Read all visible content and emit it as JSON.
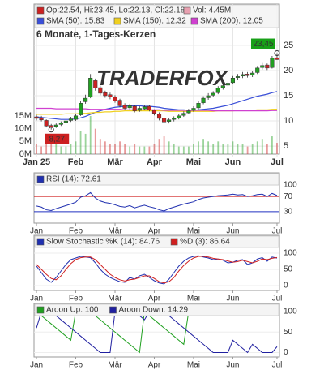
{
  "chart_data": [
    {
      "type": "candlestick",
      "title": "6 Monate, 1-Tages-Kerzen",
      "ohlc_label": "Op:22.54, Hi:23.45, Lo:22.13, Cl:22.18",
      "volume_label": "Vol: 4.45M",
      "watermark": "TRADERFOX",
      "up_color": "#22a022",
      "down_color": "#cc2222",
      "volume_color": "#e8a0b0",
      "x_ticks": [
        {
          "value": 0,
          "label": "Jan 25"
        },
        {
          "value": 8,
          "label": "Feb"
        },
        {
          "value": 16,
          "label": "Mär"
        },
        {
          "value": 24,
          "label": "Apr"
        },
        {
          "value": 32,
          "label": "Mai"
        },
        {
          "value": 40,
          "label": "Jun"
        },
        {
          "value": 49,
          "label": "Jul"
        }
      ],
      "open": [
        10.8,
        10.6,
        10.1,
        9.1,
        8.9,
        9.3,
        9.7,
        10.1,
        10.3,
        11.2,
        13.8,
        14.8,
        18.0,
        16.6,
        15.6,
        15.2,
        14.7,
        14.1,
        13.1,
        12.6,
        12.9,
        12.1,
        12.4,
        12.9,
        12.1,
        11.4,
        10.6,
        9.9,
        10.3,
        10.6,
        11.1,
        11.6,
        12.1,
        12.6,
        13.6,
        14.6,
        15.1,
        15.6,
        16.6,
        17.1,
        17.6,
        18.6,
        18.9,
        19.3,
        19.1,
        19.6,
        20.6,
        21.1,
        20.6,
        22.54
      ],
      "high": [
        11.2,
        11.0,
        10.3,
        9.4,
        9.5,
        9.9,
        10.3,
        10.8,
        11.4,
        14.0,
        15.2,
        19.3,
        18.4,
        17.0,
        16.0,
        15.6,
        15.1,
        14.4,
        13.5,
        13.4,
        13.2,
        12.9,
        13.2,
        13.1,
        12.3,
        11.7,
        10.9,
        10.6,
        10.9,
        11.4,
        11.9,
        12.4,
        12.9,
        13.9,
        14.9,
        15.5,
        15.9,
        16.9,
        17.5,
        17.9,
        18.9,
        19.3,
        19.7,
        19.7,
        19.9,
        20.9,
        21.5,
        21.4,
        22.9,
        23.45
      ],
      "low": [
        10.1,
        9.9,
        8.7,
        8.27,
        8.6,
        9.0,
        9.4,
        9.8,
        10.0,
        11.0,
        13.4,
        14.5,
        16.0,
        15.1,
        14.6,
        14.3,
        13.6,
        12.7,
        12.1,
        12.3,
        11.7,
        11.8,
        12.1,
        11.9,
        11.1,
        10.1,
        9.4,
        9.5,
        9.9,
        10.3,
        10.8,
        11.3,
        11.8,
        12.3,
        13.3,
        14.2,
        14.7,
        15.3,
        16.2,
        16.7,
        17.3,
        18.2,
        18.5,
        18.6,
        18.7,
        19.3,
        20.2,
        20.1,
        20.4,
        22.13
      ],
      "close": [
        10.5,
        10.2,
        9.0,
        8.8,
        9.2,
        9.6,
        10.0,
        10.4,
        11.0,
        13.5,
        14.5,
        18.5,
        16.5,
        15.5,
        15.0,
        14.8,
        14.0,
        13.0,
        12.5,
        13.0,
        12.0,
        12.5,
        12.8,
        12.2,
        11.5,
        10.5,
        9.8,
        10.2,
        10.5,
        11.0,
        11.5,
        12.0,
        12.5,
        13.5,
        14.5,
        15.0,
        15.5,
        16.5,
        17.0,
        17.5,
        18.5,
        18.8,
        19.2,
        19.0,
        19.5,
        20.5,
        21.0,
        20.5,
        22.5,
        22.18
      ],
      "volume": [
        4,
        3,
        5,
        6,
        4,
        3,
        3,
        4,
        5,
        9,
        8,
        15,
        10,
        6,
        5,
        4,
        4,
        5,
        4,
        3,
        4,
        3,
        3,
        3,
        4,
        6,
        7,
        5,
        4,
        3,
        3,
        3,
        4,
        5,
        6,
        5,
        4,
        5,
        4,
        4,
        5,
        4,
        4,
        3,
        4,
        5,
        6,
        4,
        7,
        4.45
      ],
      "series": [
        {
          "name": "SMA (50): 15.83",
          "color": "#3a4fd8",
          "values": [
            10.8,
            10.7,
            10.6,
            10.5,
            10.4,
            10.3,
            10.3,
            10.3,
            10.4,
            10.6,
            10.9,
            11.3,
            11.7,
            12.0,
            12.3,
            12.5,
            12.7,
            12.8,
            12.9,
            13.0,
            13.0,
            13.0,
            12.9,
            12.9,
            12.8,
            12.7,
            12.5,
            12.4,
            12.3,
            12.2,
            12.2,
            12.1,
            12.1,
            12.2,
            12.3,
            12.4,
            12.5,
            12.7,
            12.9,
            13.1,
            13.4,
            13.7,
            14.0,
            14.3,
            14.6,
            14.9,
            15.1,
            15.3,
            15.6,
            15.83
          ]
        },
        {
          "name": "SMA (150): 12.32",
          "color": "#f0d020",
          "values": [
            11.3,
            11.3,
            11.3,
            11.3,
            11.3,
            11.3,
            11.4,
            11.4,
            11.4,
            11.5,
            11.5,
            11.6,
            11.7,
            11.7,
            11.8,
            11.8,
            11.9,
            11.9,
            12.0,
            12.0,
            12.0,
            12.0,
            12.0,
            12.0,
            12.0,
            12.0,
            12.0,
            11.9,
            11.9,
            11.9,
            11.9,
            11.9,
            11.9,
            11.9,
            11.9,
            11.9,
            11.9,
            12.0,
            12.0,
            12.0,
            12.0,
            12.1,
            12.1,
            12.1,
            12.1,
            12.2,
            12.2,
            12.2,
            12.3,
            12.32
          ]
        },
        {
          "name": "SMA (200): 12.05",
          "color": "#d040d0",
          "values": [
            12.5,
            12.5,
            12.5,
            12.5,
            12.4,
            12.4,
            12.4,
            12.4,
            12.4,
            12.4,
            12.4,
            12.3,
            12.3,
            12.3,
            12.3,
            12.3,
            12.3,
            12.3,
            12.2,
            12.2,
            12.2,
            12.2,
            12.2,
            12.2,
            12.2,
            12.2,
            12.1,
            12.1,
            12.1,
            12.1,
            12.1,
            12.1,
            12.1,
            12.1,
            12.1,
            12.1,
            12.0,
            12.0,
            12.0,
            12.0,
            12.0,
            12.0,
            12.0,
            12.0,
            12.0,
            12.0,
            12.0,
            12.0,
            12.05,
            12.05
          ]
        }
      ],
      "annotations": [
        {
          "text": "23,45",
          "value": 23.45,
          "index": 49,
          "color": "#18a018"
        },
        {
          "text": "8,27",
          "value": 8.27,
          "index": 3,
          "color": "#cc2020"
        }
      ],
      "ylim": [
        3.4,
        33.2
      ],
      "yticks": [
        5,
        10,
        15,
        20,
        25
      ],
      "y2lim": [
        0,
        59
      ],
      "y2ticks": [
        {
          "value": 0,
          "label": "0M"
        },
        {
          "value": 5,
          "label": "5M"
        },
        {
          "value": 10,
          "label": "10M"
        },
        {
          "value": 15,
          "label": "15M"
        }
      ],
      "grid": true
    },
    {
      "type": "line",
      "x_ticks": [
        {
          "value": 0,
          "label": "Jan"
        },
        {
          "value": 8,
          "label": "Feb"
        },
        {
          "value": 16,
          "label": "Mär"
        },
        {
          "value": 24,
          "label": "Apr"
        },
        {
          "value": 32,
          "label": "Mai"
        },
        {
          "value": 40,
          "label": "Jun"
        },
        {
          "value": 49,
          "label": "Jul"
        }
      ],
      "series": [
        {
          "name": "RSI (14): 72.61",
          "color": "#2030b0",
          "values": [
            45,
            42,
            35,
            33,
            38,
            42,
            46,
            50,
            55,
            68,
            72,
            80,
            66,
            58,
            54,
            52,
            48,
            44,
            42,
            46,
            40,
            44,
            47,
            43,
            40,
            35,
            32,
            38,
            42,
            46,
            50,
            53,
            56,
            62,
            66,
            68,
            70,
            72,
            73,
            74,
            76,
            74,
            75,
            70,
            72,
            75,
            76,
            70,
            78,
            72.61
          ]
        }
      ],
      "ylim": [
        0,
        132
      ],
      "yticks": [
        100,
        70,
        30
      ],
      "levels": [
        70,
        30
      ],
      "level_colors": [
        "#d02020",
        "#2030c0"
      ]
    },
    {
      "type": "line",
      "x_ticks": [
        {
          "value": 0,
          "label": "Jan"
        },
        {
          "value": 8,
          "label": "Feb"
        },
        {
          "value": 16,
          "label": "Mär"
        },
        {
          "value": 24,
          "label": "Apr"
        },
        {
          "value": 32,
          "label": "Mai"
        },
        {
          "value": 40,
          "label": "Jun"
        },
        {
          "value": 49,
          "label": "Jul"
        }
      ],
      "series": [
        {
          "name": "Slow Stochastic %K (14): 84.76",
          "color": "#2030b0",
          "values": [
            60,
            40,
            20,
            10,
            25,
            45,
            65,
            80,
            85,
            90,
            88,
            86,
            70,
            50,
            35,
            25,
            18,
            12,
            10,
            25,
            20,
            30,
            35,
            25,
            15,
            8,
            5,
            20,
            40,
            60,
            75,
            85,
            90,
            92,
            88,
            85,
            80,
            82,
            78,
            70,
            72,
            78,
            80,
            65,
            70,
            82,
            86,
            75,
            88,
            84.76
          ]
        },
        {
          "name": "%D (3): 86.64",
          "color": "#d02020",
          "values": [
            65,
            50,
            35,
            22,
            18,
            30,
            50,
            68,
            80,
            86,
            88,
            88,
            80,
            65,
            50,
            35,
            25,
            18,
            14,
            18,
            20,
            25,
            30,
            30,
            22,
            12,
            8,
            12,
            25,
            45,
            62,
            75,
            85,
            90,
            90,
            88,
            84,
            82,
            80,
            76,
            72,
            74,
            78,
            74,
            70,
            75,
            82,
            80,
            84,
            86.64
          ]
        }
      ],
      "ylim": [
        -15,
        155
      ],
      "yticks": [
        0,
        50,
        100
      ]
    },
    {
      "type": "line",
      "x_ticks": [
        {
          "value": 0,
          "label": "Jan"
        },
        {
          "value": 8,
          "label": "Feb"
        },
        {
          "value": 16,
          "label": "Mär"
        },
        {
          "value": 24,
          "label": "Apr"
        },
        {
          "value": 32,
          "label": "Mai"
        },
        {
          "value": 40,
          "label": "Jun"
        },
        {
          "value": 49,
          "label": "Jul"
        }
      ],
      "series": [
        {
          "name": "Aroon Up: 100",
          "color": "#20a020",
          "values": [
            100,
            90,
            80,
            70,
            60,
            50,
            40,
            30,
            100,
            100,
            100,
            100,
            90,
            80,
            70,
            60,
            50,
            40,
            30,
            20,
            10,
            0,
            100,
            90,
            80,
            70,
            60,
            50,
            40,
            30,
            20,
            100,
            100,
            100,
            100,
            100,
            100,
            100,
            100,
            100,
            100,
            100,
            100,
            90,
            100,
            100,
            100,
            90,
            100,
            100
          ]
        },
        {
          "name": "Aroon Down: 14.29",
          "color": "#2020a0",
          "values": [
            60,
            100,
            100,
            100,
            90,
            80,
            70,
            60,
            50,
            40,
            30,
            20,
            10,
            0,
            0,
            0,
            100,
            100,
            90,
            100,
            100,
            90,
            80,
            100,
            100,
            100,
            100,
            90,
            80,
            70,
            60,
            50,
            40,
            30,
            20,
            10,
            0,
            0,
            0,
            0,
            30,
            20,
            10,
            0,
            20,
            10,
            0,
            0,
            0,
            14.29
          ]
        }
      ],
      "ylim": [
        -11,
        120
      ],
      "yticks": [
        0,
        50,
        100
      ]
    }
  ]
}
